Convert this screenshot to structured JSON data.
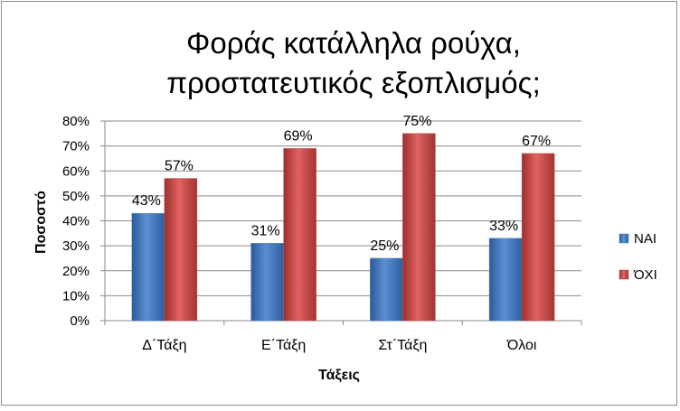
{
  "chart_data": {
    "type": "bar",
    "title_lines": [
      "Φοράς κατάλληλα ρούχα,",
      "προστατευτικός εξοπλισμός;"
    ],
    "xlabel": "Τάξεις",
    "ylabel": "Ποσοστό",
    "categories": [
      "Δ΄Τάξη",
      "Ε΄Τάξη",
      "Στ΄Τάξη",
      "Όλοι"
    ],
    "series": [
      {
        "name": "ΝΑΙ",
        "values": [
          43,
          31,
          25,
          33
        ],
        "labels": [
          "43%",
          "31%",
          "25%",
          "33%"
        ],
        "color": "#4a7ebf"
      },
      {
        "name": "ΌΧΙ",
        "values": [
          57,
          69,
          75,
          67
        ],
        "labels": [
          "57%",
          "69%",
          "75%",
          "67%"
        ],
        "color": "#c0504d"
      }
    ],
    "ylim": [
      0,
      80
    ],
    "yticks": [
      "0%",
      "10%",
      "20%",
      "30%",
      "40%",
      "50%",
      "60%",
      "70%",
      "80%"
    ],
    "grid": true,
    "legend_position": "right"
  }
}
